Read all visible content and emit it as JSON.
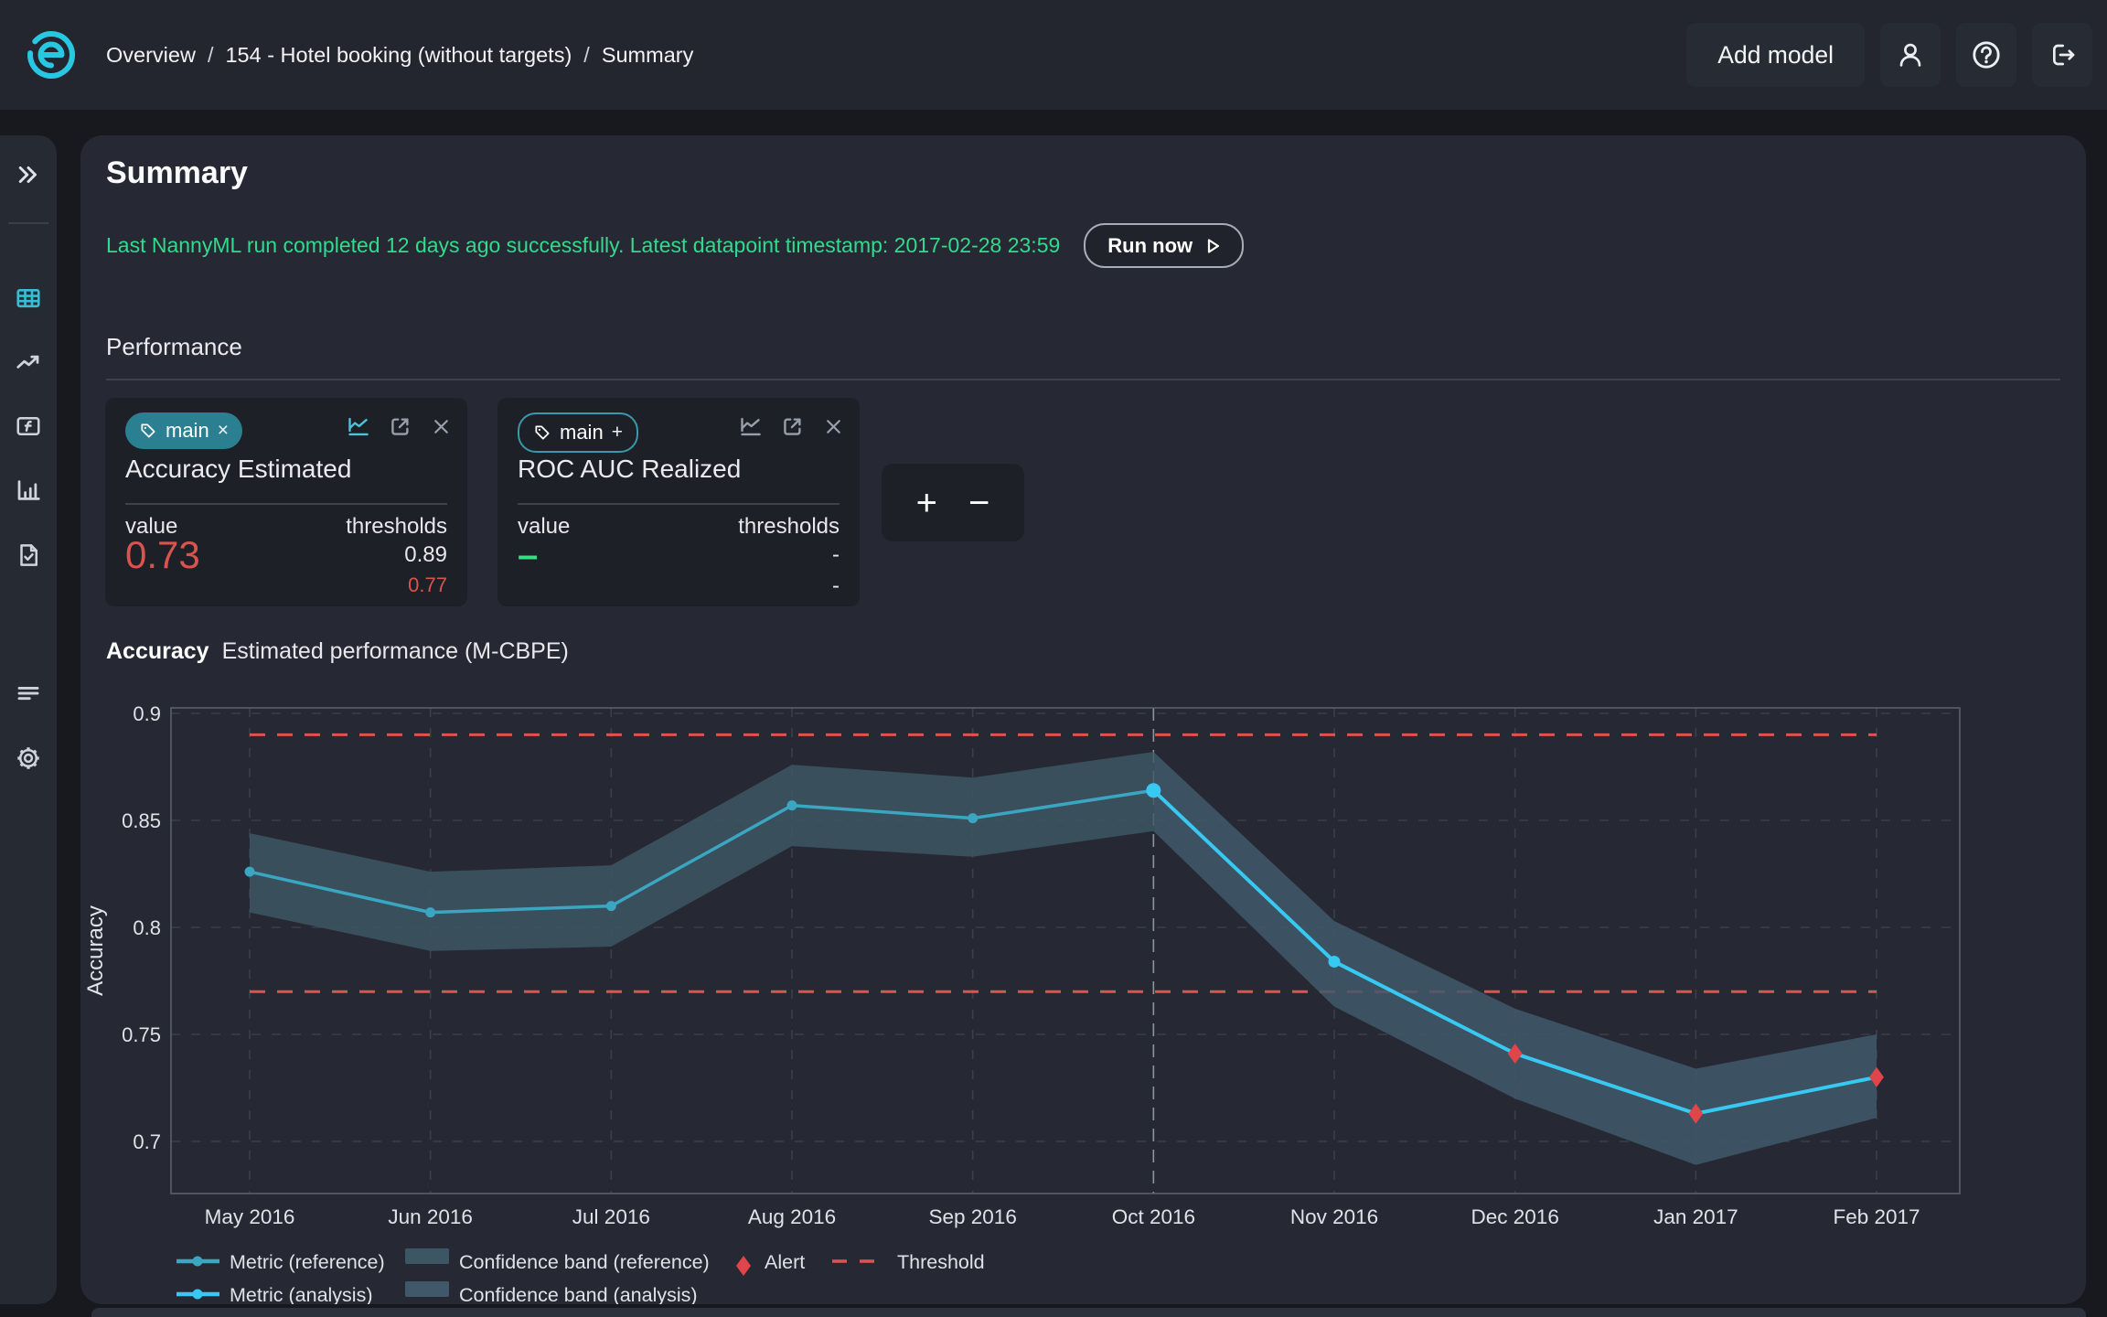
{
  "navbar": {
    "breadcrumb": {
      "items": [
        "Overview",
        "154 - Hotel booking (without targets)",
        "Summary"
      ],
      "separator": "/"
    },
    "add_model_label": "Add model"
  },
  "summary": {
    "title": "Summary",
    "status_text": "Last NannyML run completed 12 days ago successfully. Latest datapoint timestamp: 2017-02-28 23:59",
    "run_now_label": "Run now"
  },
  "performance": {
    "heading": "Performance",
    "cards": [
      {
        "tag_label": "main",
        "tag_action": "×",
        "title": "Accuracy Estimated",
        "value_label": "value",
        "thresholds_label": "thresholds",
        "value": "0.73",
        "threshold_upper": "0.89",
        "threshold_lower": "0.77"
      },
      {
        "tag_label": "main",
        "tag_action": "+",
        "title": "ROC AUC Realized",
        "value_label": "value",
        "thresholds_label": "thresholds",
        "value": "–",
        "threshold_upper": "-",
        "threshold_lower": "-"
      }
    ],
    "add_button_label": "+",
    "remove_button_label": "−"
  },
  "chart_header": {
    "metric": "Accuracy",
    "subtitle": "Estimated performance (M-CBPE)"
  },
  "chart_data": {
    "type": "line",
    "title": "Accuracy Estimated performance (M-CBPE)",
    "ylabel": "Accuracy",
    "categories": [
      "May 2016",
      "Jun 2016",
      "Jul 2016",
      "Aug 2016",
      "Sep 2016",
      "Oct 2016",
      "Nov 2016",
      "Dec 2016",
      "Jan 2017",
      "Feb 2017"
    ],
    "yticks": [
      "0.9",
      "0.85",
      "0.8",
      "0.75",
      "0.7"
    ],
    "ylim": [
      0.676,
      0.903
    ],
    "grid": true,
    "legend_position": "bottom",
    "thresholds": [
      0.89,
      0.77
    ],
    "analysis_start_index": 5,
    "series": [
      {
        "name": "Metric (reference)",
        "values": [
          0.826,
          0.807,
          0.81,
          0.857,
          0.851,
          0.864
        ]
      },
      {
        "name": "Metric (analysis)",
        "start_index": 5,
        "values": [
          0.864,
          0.784,
          0.741,
          0.713,
          0.73
        ]
      }
    ],
    "confidence_upper": [
      0.844,
      0.826,
      0.829,
      0.876,
      0.87,
      0.882,
      0.803,
      0.762,
      0.734,
      0.75
    ],
    "confidence_lower": [
      0.807,
      0.789,
      0.791,
      0.838,
      0.833,
      0.845,
      0.763,
      0.72,
      0.689,
      0.711
    ],
    "alerts": [
      {
        "category": "Dec 2016",
        "value": 0.741
      },
      {
        "category": "Jan 2017",
        "value": 0.713
      },
      {
        "category": "Feb 2017",
        "value": 0.73
      }
    ],
    "legend": {
      "metric_reference": "Metric (reference)",
      "metric_analysis": "Metric (analysis)",
      "band_reference": "Confidence band (reference)",
      "band_analysis": "Confidence band (analysis)",
      "alert": "Alert",
      "threshold": "Threshold"
    },
    "colors": {
      "reference_line": "#3ba6c2",
      "analysis_line": "#38c9f2",
      "band_reference": "#3d5663",
      "band_analysis": "#41586a",
      "alert": "#e0454a",
      "threshold": "#e05252",
      "grid": "#3a3f4b",
      "axis_border": "#5d6470",
      "tick_text": "#dfe2e8",
      "analysis_divider": "#8d94a2"
    }
  }
}
